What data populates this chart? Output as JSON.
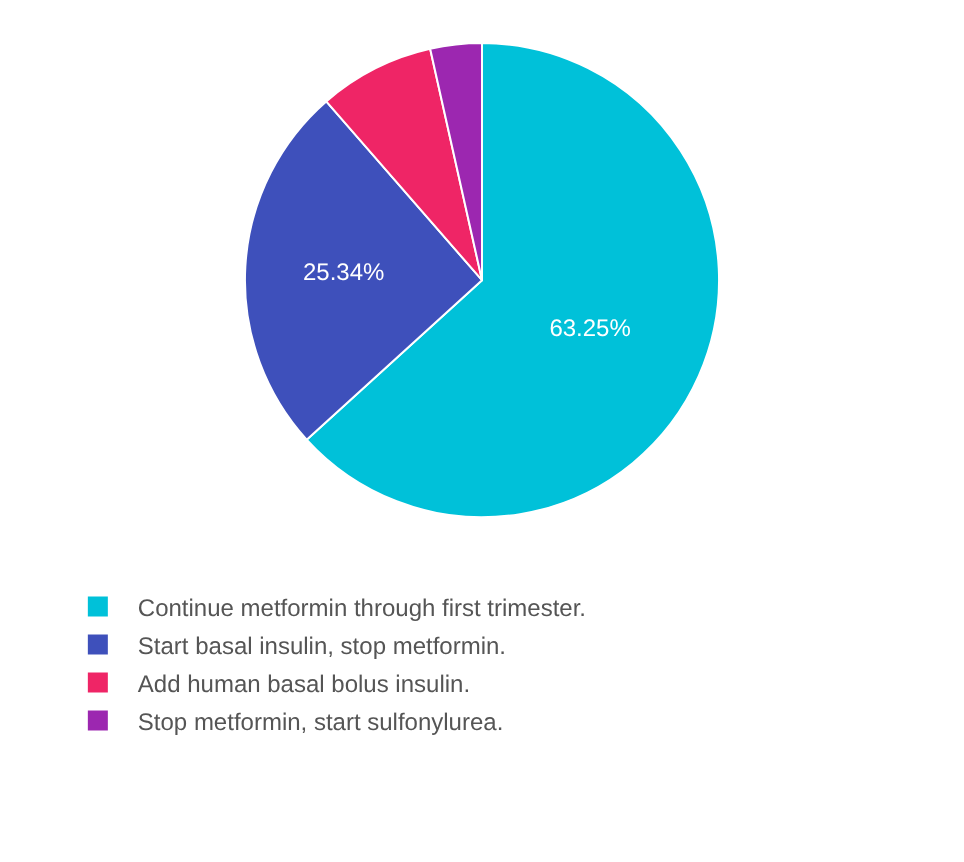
{
  "chart_data": {
    "type": "pie",
    "categories": [
      "Continue metformin through first trimester.",
      "Start basal insulin, stop metformin.",
      "Add human basal bolus insulin.",
      "Stop metformin, start sulfonylurea."
    ],
    "values": [
      63.25,
      25.34,
      7.9,
      3.51
    ],
    "value_labels": [
      "63.25%",
      "25.34%",
      null,
      null
    ],
    "colors": [
      "#00c1d9",
      "#3e50bb",
      "#ef2566",
      "#9c27b0"
    ],
    "legend": "bottom"
  }
}
